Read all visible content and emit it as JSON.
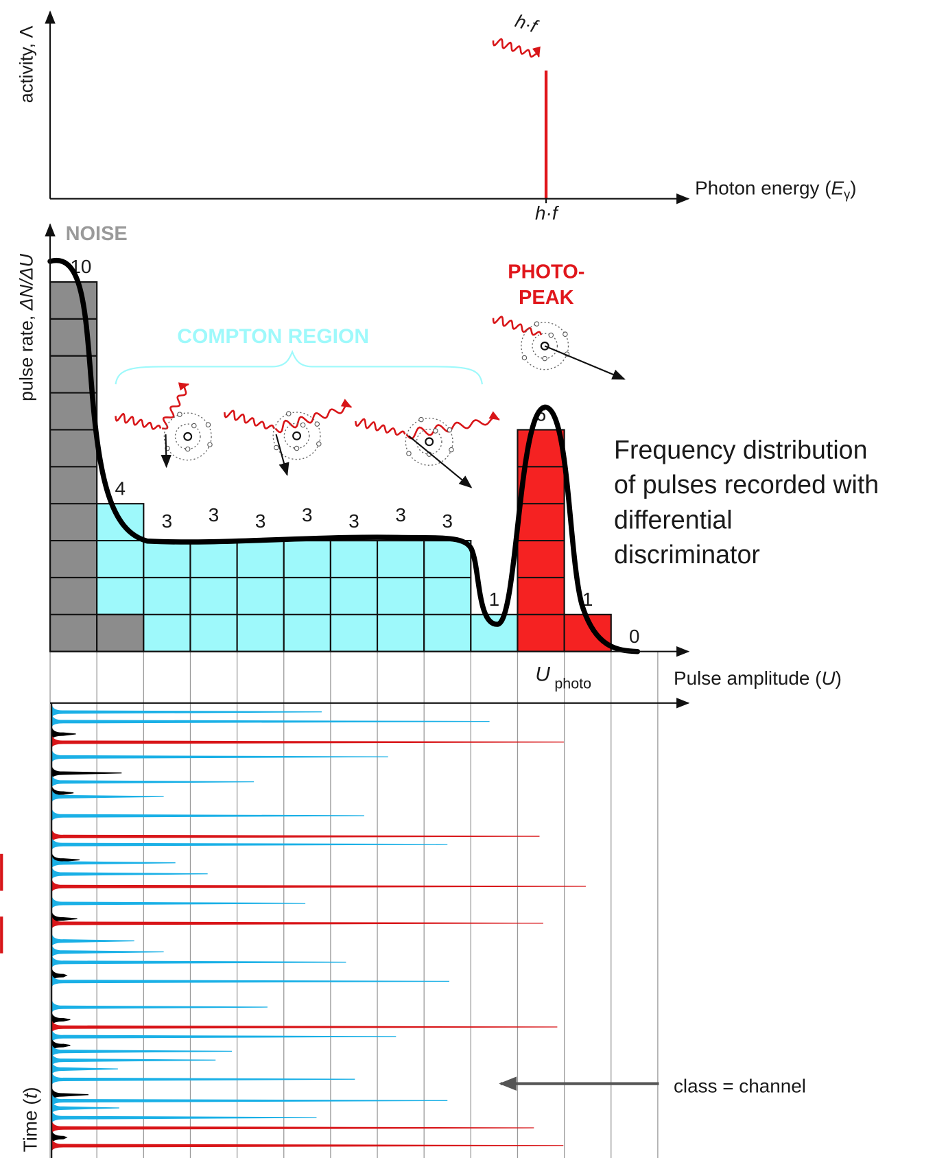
{
  "top_panel": {
    "y_label": "activity, Λ",
    "x_label": {
      "text": "Photon energy (",
      "var": "E",
      "sub": "γ",
      "close": ")"
    },
    "tick_label": "h·f",
    "photon_label": "h·f",
    "ylim": [
      0,
      1
    ],
    "activity": 0.67,
    "color": "#e0161b"
  },
  "histogram": {
    "y_label": {
      "text": "pulse rate, ",
      "var": "ΔN/ΔU"
    },
    "x_label": {
      "text": "Pulse amplitude (",
      "var": "U",
      "close": ")"
    },
    "tick_label": {
      "var": "U",
      "sub": "photo"
    },
    "counts": [
      10,
      4,
      3,
      3,
      3,
      3,
      3,
      3,
      3,
      1,
      6,
      1,
      0
    ],
    "colors": [
      "#8c8c8c",
      "#9ef9fb",
      "#9ef9fb",
      "#9ef9fb",
      "#9ef9fb",
      "#9ef9fb",
      "#9ef9fb",
      "#9ef9fb",
      "#9ef9fb",
      "#9ef9fb",
      "#f52222",
      "#f52222",
      "#f52222"
    ],
    "noise_label": "NOISE",
    "compton_label": "COMPTON REGION",
    "photopeak_label": [
      "PHOTO-",
      "PEAK"
    ],
    "description": [
      "Frequency distribution",
      "of pulses recorded with",
      "differential",
      "discriminator"
    ]
  },
  "time_panel": {
    "y_label": {
      "text": "Time (",
      "var": "t",
      "close": ")"
    },
    "annotation": "class = channel",
    "tlim": [
      0,
      618
    ],
    "times": [
      12,
      25,
      42,
      53,
      73,
      95,
      107,
      122,
      127,
      153,
      181,
      192,
      213,
      217,
      232,
      249,
      272,
      293,
      299,
      323,
      338,
      352,
      370,
      378,
      413,
      430,
      440,
      453,
      465,
      473,
      485,
      497,
      511,
      532,
      540,
      550,
      563,
      577,
      590,
      601
    ],
    "amplitudes": [
      5.81,
      9.4,
      0.55,
      10.99,
      7.23,
      1.53,
      4.36,
      0.5,
      2.43,
      6.72,
      10.47,
      8.5,
      0.63,
      2.68,
      3.37,
      11.46,
      5.46,
      0.58,
      10.55,
      1.8,
      2.43,
      6.33,
      0.35,
      8.54,
      4.65,
      0.43,
      10.85,
      7.4,
      0.43,
      3.89,
      3.54,
      1.45,
      6.52,
      0.82,
      8.5,
      1.48,
      5.7,
      10.35,
      0.35,
      10.98
    ],
    "colors": [
      "#1ab0e6",
      "#1ab0e6",
      "#000000",
      "#d81518",
      "#1ab0e6",
      "#000000",
      "#1ab0e6",
      "#000000",
      "#1ab0e6",
      "#1ab0e6",
      "#d81518",
      "#1ab0e6",
      "#000000",
      "#1ab0e6",
      "#1ab0e6",
      "#d81518",
      "#1ab0e6",
      "#000000",
      "#d81518",
      "#1ab0e6",
      "#1ab0e6",
      "#1ab0e6",
      "#000000",
      "#1ab0e6",
      "#1ab0e6",
      "#000000",
      "#d81518",
      "#1ab0e6",
      "#000000",
      "#1ab0e6",
      "#1ab0e6",
      "#1ab0e6",
      "#1ab0e6",
      "#000000",
      "#1ab0e6",
      "#1ab0e6",
      "#1ab0e6",
      "#d81518",
      "#000000",
      "#d81518"
    ]
  }
}
